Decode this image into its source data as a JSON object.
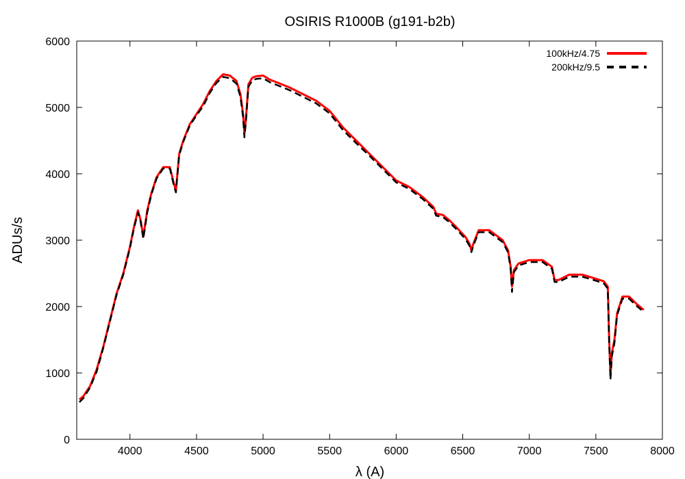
{
  "chart_data": {
    "type": "line",
    "title": "OSIRIS R1000B (g191-b2b)",
    "xlabel": "λ (A)",
    "ylabel": "ADUs/s",
    "xlim": [
      3600,
      8000
    ],
    "ylim": [
      0,
      6000
    ],
    "xticks": [
      4000,
      4500,
      5000,
      5500,
      6000,
      6500,
      7000,
      7500,
      8000
    ],
    "yticks": [
      0,
      1000,
      2000,
      3000,
      4000,
      5000,
      6000
    ],
    "legend_position": "top-right",
    "grid": false,
    "x": [
      3620,
      3650,
      3700,
      3750,
      3800,
      3850,
      3900,
      3950,
      4000,
      4030,
      4060,
      4080,
      4100,
      4130,
      4160,
      4200,
      4250,
      4300,
      4330,
      4345,
      4370,
      4400,
      4450,
      4500,
      4550,
      4600,
      4650,
      4700,
      4750,
      4800,
      4830,
      4850,
      4860,
      4870,
      4890,
      4920,
      4950,
      5000,
      5050,
      5100,
      5200,
      5300,
      5400,
      5500,
      5600,
      5700,
      5800,
      5900,
      6000,
      6100,
      6200,
      6280,
      6300,
      6350,
      6400,
      6450,
      6520,
      6550,
      6565,
      6580,
      6620,
      6700,
      6800,
      6840,
      6860,
      6870,
      6885,
      6920,
      7000,
      7100,
      7170,
      7190,
      7220,
      7300,
      7400,
      7500,
      7560,
      7590,
      7600,
      7610,
      7620,
      7640,
      7660,
      7700,
      7750,
      7800,
      7860
    ],
    "series": [
      {
        "name": "100kHz/4.75",
        "color": "#ff0000",
        "style": "solid",
        "values": [
          600,
          650,
          800,
          1050,
          1400,
          1800,
          2200,
          2500,
          2900,
          3200,
          3450,
          3300,
          3050,
          3450,
          3700,
          3950,
          4100,
          4100,
          3850,
          3750,
          4300,
          4500,
          4750,
          4900,
          5050,
          5250,
          5400,
          5500,
          5480,
          5400,
          5200,
          4900,
          4600,
          4800,
          5350,
          5450,
          5470,
          5480,
          5420,
          5380,
          5300,
          5200,
          5100,
          4950,
          4700,
          4500,
          4300,
          4100,
          3900,
          3800,
          3650,
          3500,
          3400,
          3380,
          3300,
          3200,
          3050,
          2950,
          2850,
          2950,
          3150,
          3150,
          3000,
          2850,
          2600,
          2300,
          2550,
          2650,
          2700,
          2700,
          2600,
          2400,
          2400,
          2480,
          2480,
          2420,
          2380,
          2300,
          1500,
          950,
          1300,
          1500,
          1900,
          2150,
          2150,
          2050,
          1950
        ]
      },
      {
        "name": "200kHz/9.5",
        "color": "#000000",
        "style": "dashed",
        "values": [
          560,
          620,
          780,
          1020,
          1380,
          1780,
          2180,
          2480,
          2880,
          3180,
          3420,
          3280,
          3020,
          3420,
          3680,
          3930,
          4080,
          4080,
          3820,
          3720,
          4280,
          4480,
          4730,
          4880,
          5020,
          5220,
          5370,
          5460,
          5440,
          5360,
          5160,
          4850,
          4550,
          4760,
          5310,
          5410,
          5430,
          5440,
          5380,
          5340,
          5260,
          5160,
          5060,
          4910,
          4660,
          4460,
          4270,
          4070,
          3870,
          3770,
          3620,
          3470,
          3370,
          3350,
          3270,
          3170,
          3020,
          2920,
          2820,
          2920,
          3120,
          3120,
          2970,
          2820,
          2570,
          2220,
          2520,
          2620,
          2670,
          2670,
          2570,
          2370,
          2370,
          2450,
          2450,
          2390,
          2350,
          2270,
          1450,
          900,
          1250,
          1450,
          1870,
          2120,
          2120,
          2020,
          1920
        ]
      }
    ]
  }
}
